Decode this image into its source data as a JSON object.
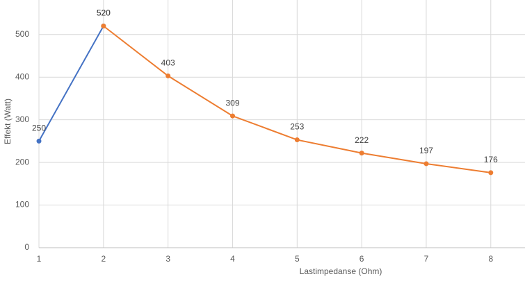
{
  "chart_data": {
    "type": "line",
    "x_label": "Lastimpedanse (Ohm)",
    "y_label": "Effekt (Watt)",
    "series": [
      {
        "color": "#4472c4",
        "x": [
          1,
          2
        ],
        "values": [
          250,
          520
        ]
      },
      {
        "color": "#ed7d31",
        "x": [
          2,
          3,
          4,
          5,
          6,
          7,
          8
        ],
        "values": [
          520,
          403,
          309,
          253,
          222,
          197,
          176
        ]
      }
    ],
    "xlim": [
      1,
      8.53
    ],
    "ylim": [
      0,
      581
    ],
    "xticks": [
      1,
      2,
      3,
      4,
      5,
      6,
      7,
      8
    ],
    "yticks": [
      0,
      100,
      200,
      300,
      400,
      500
    ],
    "grid": true
  }
}
